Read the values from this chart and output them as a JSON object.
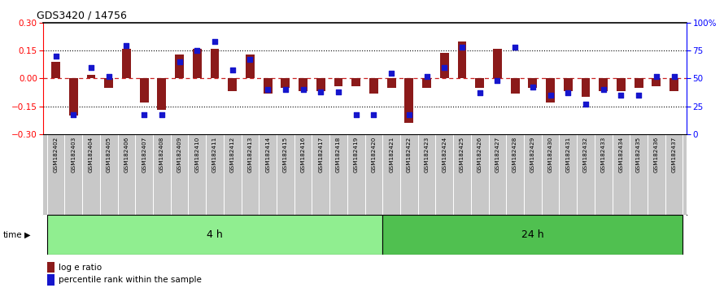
{
  "title": "GDS3420 / 14756",
  "samples": [
    "GSM182402",
    "GSM182403",
    "GSM182404",
    "GSM182405",
    "GSM182406",
    "GSM182407",
    "GSM182408",
    "GSM182409",
    "GSM182410",
    "GSM182411",
    "GSM182412",
    "GSM182413",
    "GSM182414",
    "GSM182415",
    "GSM182416",
    "GSM182417",
    "GSM182418",
    "GSM182419",
    "GSM182420",
    "GSM182421",
    "GSM182422",
    "GSM182423",
    "GSM182424",
    "GSM182425",
    "GSM182426",
    "GSM182427",
    "GSM182428",
    "GSM182429",
    "GSM182430",
    "GSM182431",
    "GSM182432",
    "GSM182433",
    "GSM182434",
    "GSM182435",
    "GSM182436",
    "GSM182437"
  ],
  "log_ratio": [
    0.09,
    -0.2,
    0.02,
    -0.05,
    0.16,
    -0.13,
    -0.17,
    0.13,
    0.16,
    0.16,
    -0.07,
    0.13,
    -0.08,
    -0.05,
    -0.07,
    -0.07,
    -0.04,
    -0.04,
    -0.08,
    -0.05,
    -0.24,
    -0.05,
    0.14,
    0.2,
    -0.05,
    0.16,
    -0.08,
    -0.05,
    -0.13,
    -0.07,
    -0.1,
    -0.07,
    -0.07,
    -0.05,
    -0.04,
    -0.07
  ],
  "percentile": [
    70,
    17,
    60,
    52,
    80,
    17,
    17,
    65,
    75,
    83,
    58,
    67,
    40,
    40,
    40,
    38,
    38,
    17,
    17,
    55,
    17,
    52,
    60,
    78,
    37,
    48,
    78,
    42,
    35,
    37,
    27,
    40,
    35,
    35,
    52,
    52
  ],
  "group_4h_count": 19,
  "group_labels": [
    "4 h",
    "24 h"
  ],
  "bar_color": "#8B1A1A",
  "dot_color": "#1515CC",
  "ylim": [
    -0.3,
    0.3
  ],
  "yticks_left": [
    -0.3,
    -0.15,
    0.0,
    0.15,
    0.3
  ],
  "yticks_right": [
    0,
    25,
    50,
    75,
    100
  ],
  "right_yticklabels": [
    "0",
    "25",
    "50",
    "75",
    "100%"
  ],
  "group_4h_color": "#90EE90",
  "group_24h_color": "#50C050",
  "tick_box_color": "#C8C8C8",
  "legend_red_label": "log e ratio",
  "legend_blue_label": "percentile rank within the sample",
  "time_label": "time"
}
